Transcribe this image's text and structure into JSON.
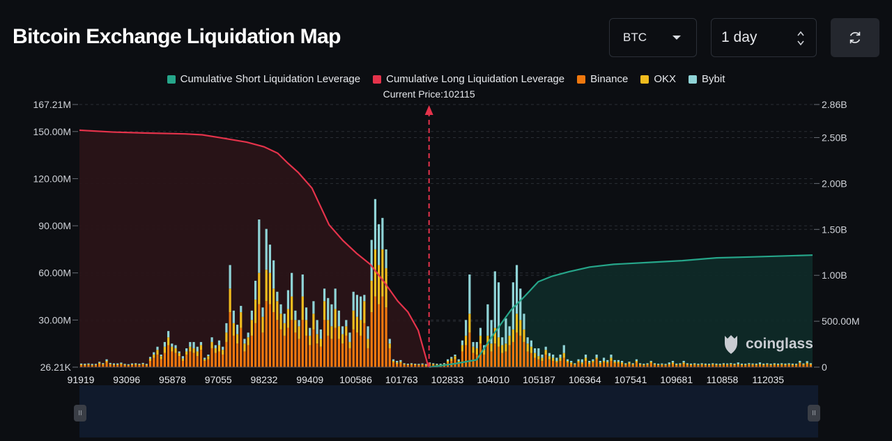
{
  "header": {
    "title": "Bitcoin Exchange Liquidation Map",
    "coin_select": "BTC",
    "range_select": "1 day"
  },
  "legend": [
    {
      "label": "Cumulative Short Liquidation Leverage",
      "color": "#26a68a"
    },
    {
      "label": "Cumulative Long Liquidation Leverage",
      "color": "#e5334b"
    },
    {
      "label": "Binance",
      "color": "#f0780e"
    },
    {
      "label": "OKX",
      "color": "#f1bc1e"
    },
    {
      "label": "Bybit",
      "color": "#8fd3d6"
    }
  ],
  "watermark": "coinglass",
  "chart_data": {
    "type": "bar",
    "current_price_label": "Current Price:102115",
    "current_price": 102115,
    "x_tick_labels": [
      "91919",
      "93096",
      "95878",
      "97055",
      "98232",
      "99409",
      "100586",
      "101763",
      "102833",
      "104010",
      "105187",
      "106364",
      "107541",
      "109681",
      "110858",
      "112035"
    ],
    "x_range": [
      91919,
      113300
    ],
    "y_left_ticks": [
      "26.21K",
      "30.00M",
      "60.00M",
      "90.00M",
      "120.00M",
      "150.00M",
      "167.21M"
    ],
    "y_left_ticks_values": [
      0,
      30,
      60,
      90,
      120,
      150,
      167.21
    ],
    "y_right_ticks": [
      "0",
      "500.00M",
      "1.00B",
      "1.50B",
      "2.00B",
      "2.50B",
      "2.86B"
    ],
    "y_right_ticks_values": [
      0,
      0.5,
      1.0,
      1.5,
      2.0,
      2.5,
      2.86
    ],
    "ylim_left": [
      0,
      167.21
    ],
    "ylim_right": [
      0,
      2.86
    ],
    "series_meta": [
      {
        "name": "Binance",
        "color": "#f0780e"
      },
      {
        "name": "OKX",
        "color": "#f1bc1e"
      },
      {
        "name": "Bybit",
        "color": "#8fd3d6"
      }
    ],
    "bars": [
      [
        1.2,
        0.6,
        0.5
      ],
      [
        1.1,
        0.5,
        0.6
      ],
      [
        1.3,
        0.6,
        0.5
      ],
      [
        1.0,
        0.5,
        0.6
      ],
      [
        1.2,
        0.4,
        0.5
      ],
      [
        2.0,
        0.8,
        0.6
      ],
      [
        1.4,
        0.7,
        0.5
      ],
      [
        3.0,
        1.0,
        1.0
      ],
      [
        1.5,
        0.6,
        0.6
      ],
      [
        1.2,
        0.5,
        0.7
      ],
      [
        1.3,
        0.5,
        0.6
      ],
      [
        1.6,
        0.7,
        0.6
      ],
      [
        1.1,
        0.5,
        0.5
      ],
      [
        1.0,
        0.4,
        0.5
      ],
      [
        1.3,
        0.5,
        0.6
      ],
      [
        1.4,
        0.6,
        0.5
      ],
      [
        1.2,
        0.5,
        0.5
      ],
      [
        1.5,
        0.6,
        0.6
      ],
      [
        1.1,
        0.5,
        0.5
      ],
      [
        4.0,
        1.5,
        1.0
      ],
      [
        6.0,
        2.0,
        1.5
      ],
      [
        8.0,
        3.0,
        2.0
      ],
      [
        5.0,
        2.0,
        1.0
      ],
      [
        9.0,
        4.0,
        3.0
      ],
      [
        14.0,
        5.0,
        4.0
      ],
      [
        10.0,
        3.0,
        2.0
      ],
      [
        9.0,
        3.0,
        2.0
      ],
      [
        7.0,
        2.0,
        1.0
      ],
      [
        4.0,
        1.5,
        1.5
      ],
      [
        8.0,
        2.0,
        2.0
      ],
      [
        10.0,
        3.0,
        3.0
      ],
      [
        9.0,
        3.0,
        4.0
      ],
      [
        7.0,
        3.0,
        3.0
      ],
      [
        11.0,
        3.0,
        2.0
      ],
      [
        4.0,
        1.0,
        1.0
      ],
      [
        5.0,
        2.0,
        1.0
      ],
      [
        12.0,
        4.0,
        3.0
      ],
      [
        9.0,
        3.0,
        2.0
      ],
      [
        10.0,
        4.0,
        3.0
      ],
      [
        8.0,
        3.0,
        2.0
      ],
      [
        16.0,
        6.0,
        6.0
      ],
      [
        35.0,
        15.0,
        15.0
      ],
      [
        20.0,
        8.0,
        8.0
      ],
      [
        15.0,
        6.0,
        6.0
      ],
      [
        25.0,
        10.0,
        4.0
      ],
      [
        10.0,
        5.0,
        3.0
      ],
      [
        14.0,
        5.0,
        3.0
      ],
      [
        20.0,
        10.0,
        6.0
      ],
      [
        28.0,
        15.0,
        12.0
      ],
      [
        40.0,
        20.0,
        34.0
      ],
      [
        22.0,
        10.0,
        6.0
      ],
      [
        42.0,
        20.0,
        26.0
      ],
      [
        40.0,
        20.0,
        18.0
      ],
      [
        35.0,
        15.0,
        18.0
      ],
      [
        30.0,
        12.0,
        6.0
      ],
      [
        24.0,
        10.0,
        6.0
      ],
      [
        20.0,
        8.0,
        6.0
      ],
      [
        25.0,
        12.0,
        12.0
      ],
      [
        30.0,
        15.0,
        15.0
      ],
      [
        22.0,
        8.0,
        6.0
      ],
      [
        18.0,
        8.0,
        4.0
      ],
      [
        30.0,
        15.0,
        14.0
      ],
      [
        20.0,
        10.0,
        8.0
      ],
      [
        14.0,
        6.0,
        5.0
      ],
      [
        24.0,
        10.0,
        8.0
      ],
      [
        15.0,
        6.0,
        9.0
      ],
      [
        13.0,
        5.0,
        6.0
      ],
      [
        30.0,
        12.0,
        8.0
      ],
      [
        20.0,
        10.0,
        14.0
      ],
      [
        18.0,
        8.0,
        14.0
      ],
      [
        25.0,
        12.0,
        13.0
      ],
      [
        18.0,
        8.0,
        10.0
      ],
      [
        15.0,
        6.0,
        5.0
      ],
      [
        20.0,
        6.0,
        4.0
      ],
      [
        12.0,
        4.0,
        6.0
      ],
      [
        24.0,
        12.0,
        12.0
      ],
      [
        22.0,
        10.0,
        14.0
      ],
      [
        20.0,
        10.0,
        15.0
      ],
      [
        28.0,
        14.0,
        4.0
      ],
      [
        12.0,
        6.0,
        8.0
      ],
      [
        35.0,
        20.0,
        26.0
      ],
      [
        45.0,
        30.0,
        32.0
      ],
      [
        40.0,
        25.0,
        26.0
      ],
      [
        45.0,
        30.0,
        20.0
      ],
      [
        38.0,
        25.0,
        12.0
      ],
      [
        12.0,
        3.0,
        3.0
      ],
      [
        3.0,
        1.0,
        1.0
      ],
      [
        2.0,
        1.0,
        1.0
      ],
      [
        2.5,
        1.0,
        1.0
      ],
      [
        1.5,
        0.5,
        0.5
      ],
      [
        1.2,
        0.5,
        0.5
      ],
      [
        1.5,
        0.5,
        0.5
      ],
      [
        1.3,
        0.5,
        0.4
      ],
      [
        1.2,
        0.4,
        0.5
      ],
      [
        1.4,
        0.5,
        0.5
      ],
      [
        1.0,
        0.5,
        0.5
      ],
      [
        2.0,
        0.5,
        0.5
      ],
      [
        1.5,
        0.5,
        0.5
      ],
      [
        1.3,
        0.4,
        0.5
      ],
      [
        1.2,
        0.5,
        0.5
      ],
      [
        1.5,
        0.6,
        0.5
      ],
      [
        3.0,
        1.0,
        1.0
      ],
      [
        4.0,
        1.5,
        1.0
      ],
      [
        5.0,
        2.0,
        1.0
      ],
      [
        3.0,
        1.0,
        1.0
      ],
      [
        10.0,
        4.0,
        3.0
      ],
      [
        14.0,
        6.0,
        10.0
      ],
      [
        22.0,
        12.0,
        25.0
      ],
      [
        9.0,
        4.0,
        3.0
      ],
      [
        8.0,
        4.0,
        4.0
      ],
      [
        15.0,
        5.0,
        5.0
      ],
      [
        8.0,
        3.0,
        3.0
      ],
      [
        14.0,
        6.0,
        20.0
      ],
      [
        10.0,
        5.0,
        15.0
      ],
      [
        15.0,
        10.0,
        36.0
      ],
      [
        13.0,
        6.0,
        35.0
      ],
      [
        9.0,
        5.0,
        5.0
      ],
      [
        10.0,
        5.0,
        16.0
      ],
      [
        14.0,
        6.0,
        6.0
      ],
      [
        16.0,
        8.0,
        30.0
      ],
      [
        22.0,
        12.0,
        31.0
      ],
      [
        20.0,
        10.0,
        20.0
      ],
      [
        16.0,
        8.0,
        10.0
      ],
      [
        10.0,
        5.0,
        4.0
      ],
      [
        9.0,
        4.0,
        4.0
      ],
      [
        6.0,
        3.0,
        3.0
      ],
      [
        5.0,
        2.0,
        5.0
      ],
      [
        4.0,
        2.0,
        2.0
      ],
      [
        8.0,
        3.0,
        2.0
      ],
      [
        5.0,
        2.0,
        2.0
      ],
      [
        4.0,
        2.0,
        2.0
      ],
      [
        3.0,
        1.0,
        2.0
      ],
      [
        4.0,
        2.0,
        2.0
      ],
      [
        6.0,
        3.0,
        5.0
      ],
      [
        3.0,
        1.0,
        1.0
      ],
      [
        2.0,
        1.0,
        1.0
      ],
      [
        1.5,
        0.5,
        0.5
      ],
      [
        3.0,
        1.0,
        1.0
      ],
      [
        2.0,
        1.0,
        2.0
      ],
      [
        4.0,
        2.0,
        2.0
      ],
      [
        2.0,
        1.0,
        1.0
      ],
      [
        3.0,
        1.0,
        1.0
      ],
      [
        5.0,
        1.0,
        2.0
      ],
      [
        2.0,
        1.0,
        1.0
      ],
      [
        3.0,
        1.0,
        2.0
      ],
      [
        2.5,
        1.0,
        1.0
      ],
      [
        4.0,
        2.0,
        2.0
      ],
      [
        2.5,
        1.0,
        1.0
      ],
      [
        2.5,
        1.0,
        1.0
      ],
      [
        2.0,
        1.0,
        1.0
      ],
      [
        1.5,
        0.5,
        0.5
      ],
      [
        2.0,
        1.0,
        0.5
      ],
      [
        1.5,
        0.5,
        0.5
      ],
      [
        3.0,
        1.0,
        1.0
      ],
      [
        1.5,
        0.5,
        0.5
      ],
      [
        1.2,
        0.5,
        0.5
      ],
      [
        1.5,
        0.5,
        0.5
      ],
      [
        2.5,
        1.0,
        0.5
      ],
      [
        1.5,
        0.5,
        0.5
      ],
      [
        1.2,
        0.5,
        0.5
      ],
      [
        1.4,
        0.5,
        0.5
      ],
      [
        1.2,
        0.4,
        0.5
      ],
      [
        1.5,
        0.5,
        1.0
      ],
      [
        2.0,
        1.0,
        1.0
      ],
      [
        1.3,
        0.5,
        0.5
      ],
      [
        1.5,
        0.5,
        0.5
      ],
      [
        2.0,
        1.0,
        1.0
      ],
      [
        1.5,
        0.5,
        0.5
      ],
      [
        1.3,
        0.5,
        0.5
      ],
      [
        1.5,
        0.5,
        0.5
      ],
      [
        1.2,
        0.5,
        0.5
      ],
      [
        1.5,
        0.5,
        0.5
      ],
      [
        1.3,
        0.5,
        0.5
      ],
      [
        1.2,
        0.5,
        0.5
      ],
      [
        1.5,
        0.5,
        0.5
      ],
      [
        1.3,
        0.5,
        0.5
      ],
      [
        1.2,
        0.5,
        0.5
      ],
      [
        1.5,
        0.5,
        0.5
      ],
      [
        1.4,
        0.5,
        0.5
      ],
      [
        1.5,
        0.6,
        0.5
      ],
      [
        1.3,
        0.5,
        0.5
      ],
      [
        1.5,
        0.5,
        1.0
      ],
      [
        1.3,
        0.5,
        0.5
      ],
      [
        1.2,
        0.5,
        0.5
      ],
      [
        1.5,
        0.6,
        0.5
      ],
      [
        1.4,
        0.5,
        0.5
      ],
      [
        1.3,
        0.5,
        0.5
      ],
      [
        1.5,
        0.5,
        1.0
      ],
      [
        1.3,
        0.5,
        0.5
      ],
      [
        1.5,
        0.5,
        0.5
      ],
      [
        1.2,
        0.5,
        0.5
      ],
      [
        1.4,
        0.6,
        0.5
      ],
      [
        1.3,
        0.5,
        0.5
      ],
      [
        1.5,
        0.5,
        0.5
      ],
      [
        1.3,
        0.5,
        0.5
      ],
      [
        1.5,
        0.5,
        0.5
      ],
      [
        1.3,
        0.5,
        0.5
      ],
      [
        1.2,
        0.5,
        0.5
      ],
      [
        2.5,
        0.5,
        1.0
      ],
      [
        1.4,
        0.5,
        0.5
      ],
      [
        2.0,
        0.8,
        1.0
      ],
      [
        1.5,
        0.5,
        0.5
      ]
    ],
    "long_cumulative": {
      "name": "Cumulative Long Liquidation Leverage",
      "color": "#e5334b",
      "points": [
        [
          91919,
          2.58
        ],
        [
          92900,
          2.56
        ],
        [
          93800,
          2.55
        ],
        [
          95000,
          2.54
        ],
        [
          95500,
          2.53
        ],
        [
          96000,
          2.5
        ],
        [
          96800,
          2.45
        ],
        [
          97300,
          2.4
        ],
        [
          97700,
          2.33
        ],
        [
          98000,
          2.22
        ],
        [
          98300,
          2.12
        ],
        [
          98700,
          1.95
        ],
        [
          99200,
          1.55
        ],
        [
          99600,
          1.38
        ],
        [
          100000,
          1.24
        ],
        [
          100400,
          1.12
        ],
        [
          100800,
          0.93
        ],
        [
          101200,
          0.72
        ],
        [
          101500,
          0.6
        ],
        [
          101800,
          0.4
        ],
        [
          102100,
          0.0
        ]
      ]
    },
    "short_cumulative": {
      "name": "Cumulative Short Liquidation Leverage",
      "color": "#26a68a",
      "points": [
        [
          102115,
          0.0
        ],
        [
          102900,
          0.04
        ],
        [
          103500,
          0.08
        ],
        [
          104000,
          0.36
        ],
        [
          104500,
          0.62
        ],
        [
          104900,
          0.77
        ],
        [
          105300,
          0.93
        ],
        [
          105700,
          0.99
        ],
        [
          106200,
          1.04
        ],
        [
          106800,
          1.09
        ],
        [
          107500,
          1.12
        ],
        [
          108500,
          1.14
        ],
        [
          109500,
          1.16
        ],
        [
          110500,
          1.19
        ],
        [
          111500,
          1.2
        ],
        [
          113300,
          1.22
        ]
      ]
    }
  }
}
